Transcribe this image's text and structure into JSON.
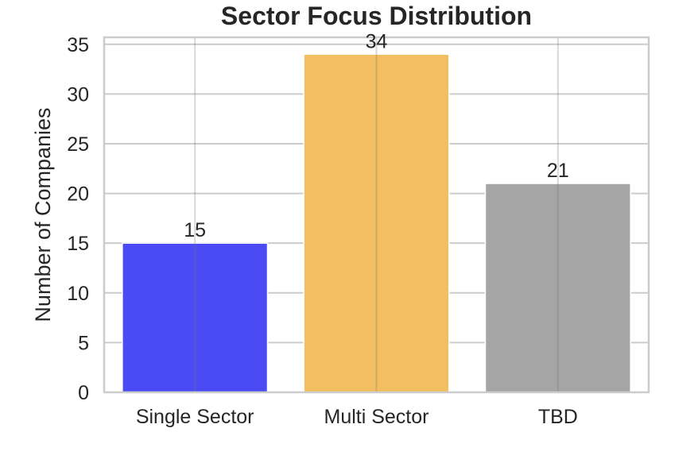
{
  "chart_data": {
    "type": "bar",
    "title": "Sector Focus Distribution",
    "xlabel": "",
    "ylabel": "Number of Companies",
    "categories": [
      "Single Sector",
      "Multi Sector",
      "TBD"
    ],
    "values": [
      15,
      34,
      21
    ],
    "colors": [
      "#4b4bf3",
      "#f3be5f",
      "#a5a5a5"
    ],
    "ylim": [
      0,
      35.7
    ],
    "yticks": [
      0,
      5,
      10,
      15,
      20,
      25,
      30,
      35
    ],
    "grid": true,
    "legend": "none"
  }
}
